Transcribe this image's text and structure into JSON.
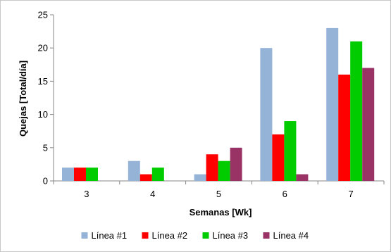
{
  "chart_data": {
    "type": "bar",
    "title": "",
    "xlabel": "Semanas [Wk]",
    "ylabel": "Quejas [Total/día]",
    "categories": [
      "3",
      "4",
      "5",
      "6",
      "7"
    ],
    "ylim": [
      0,
      25
    ],
    "yticks": [
      "0",
      "5",
      "10",
      "15",
      "20",
      "25"
    ],
    "grid": false,
    "legend_position": "bottom",
    "series": [
      {
        "name": "Línea #1",
        "color": "#95B3D7",
        "values": [
          2,
          3,
          1,
          20,
          23
        ]
      },
      {
        "name": "Línea #2",
        "color": "#FF0000",
        "values": [
          2,
          1,
          4,
          7,
          16
        ]
      },
      {
        "name": "Línea #3",
        "color": "#00CC00",
        "values": [
          2,
          2,
          3,
          9,
          21
        ]
      },
      {
        "name": "Línea #4",
        "color": "#993366",
        "values": [
          0,
          0,
          5,
          1,
          17
        ]
      }
    ]
  }
}
